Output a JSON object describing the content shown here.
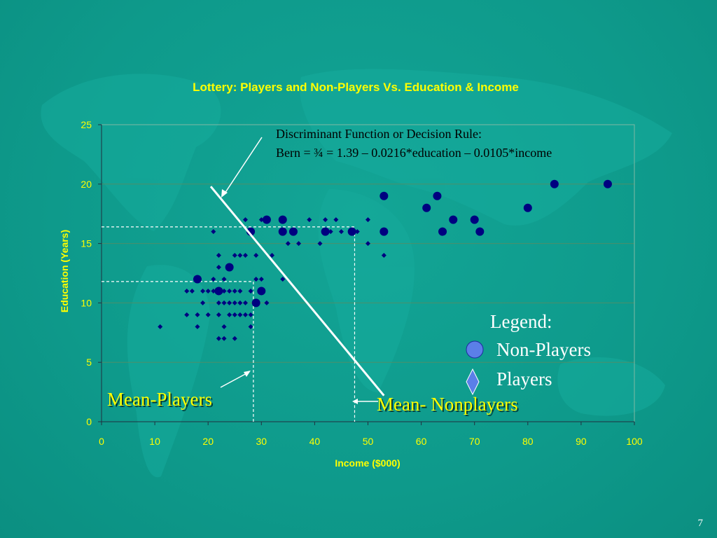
{
  "slide": {
    "number": "7"
  },
  "chart_data": {
    "type": "scatter",
    "title": "Lottery: Players and Non-Players Vs. Education & Income",
    "xlabel": "Income ($000)",
    "ylabel": "Education (Years)",
    "xlim": [
      0,
      100
    ],
    "ylim": [
      0,
      25
    ],
    "x_ticks": [
      "0",
      "10",
      "20",
      "30",
      "40",
      "50",
      "60",
      "70",
      "80",
      "90",
      "100"
    ],
    "y_ticks": [
      "0",
      "5",
      "10",
      "15",
      "20",
      "25"
    ],
    "grid": "horizontal",
    "colors": {
      "marker": "#000080",
      "legend_circle": "#5b7fe8",
      "line": "#ffffff",
      "title": "#ffff00"
    },
    "series": [
      {
        "name": "Non-Players",
        "marker": "circle",
        "points": [
          [
            18,
            12
          ],
          [
            22,
            11
          ],
          [
            24,
            13
          ],
          [
            28,
            16
          ],
          [
            29,
            10
          ],
          [
            30,
            11
          ],
          [
            31,
            17
          ],
          [
            34,
            17
          ],
          [
            34,
            16
          ],
          [
            36,
            16
          ],
          [
            42,
            16
          ],
          [
            47,
            16
          ],
          [
            53,
            19
          ],
          [
            53,
            16
          ],
          [
            61,
            18
          ],
          [
            63,
            19
          ],
          [
            64,
            16
          ],
          [
            66,
            17
          ],
          [
            70,
            17
          ],
          [
            71,
            16
          ],
          [
            80,
            18
          ],
          [
            85,
            20
          ],
          [
            95,
            20
          ]
        ]
      },
      {
        "name": "Players",
        "marker": "diamond",
        "points": [
          [
            11,
            8
          ],
          [
            16,
            11
          ],
          [
            17,
            11
          ],
          [
            16,
            9
          ],
          [
            18,
            9
          ],
          [
            18,
            8
          ],
          [
            19,
            11
          ],
          [
            19,
            10
          ],
          [
            20,
            11
          ],
          [
            20,
            9
          ],
          [
            21,
            16
          ],
          [
            21,
            12
          ],
          [
            21,
            11
          ],
          [
            22,
            14
          ],
          [
            22,
            13
          ],
          [
            22,
            10
          ],
          [
            22,
            9
          ],
          [
            22,
            7
          ],
          [
            23,
            12
          ],
          [
            23,
            11
          ],
          [
            23,
            10
          ],
          [
            23,
            8
          ],
          [
            23,
            7
          ],
          [
            24,
            11
          ],
          [
            24,
            10
          ],
          [
            24,
            9
          ],
          [
            25,
            14
          ],
          [
            25,
            11
          ],
          [
            25,
            10
          ],
          [
            25,
            9
          ],
          [
            25,
            7
          ],
          [
            26,
            14
          ],
          [
            26,
            11
          ],
          [
            26,
            10
          ],
          [
            26,
            9
          ],
          [
            27,
            17
          ],
          [
            27,
            14
          ],
          [
            27,
            10
          ],
          [
            27,
            9
          ],
          [
            28,
            11
          ],
          [
            28,
            9
          ],
          [
            28,
            8
          ],
          [
            29,
            14
          ],
          [
            29,
            12
          ],
          [
            30,
            17
          ],
          [
            30,
            12
          ],
          [
            30,
            11
          ],
          [
            31,
            10
          ],
          [
            32,
            14
          ],
          [
            34,
            12
          ],
          [
            35,
            15
          ],
          [
            37,
            15
          ],
          [
            39,
            17
          ],
          [
            41,
            15
          ],
          [
            42,
            17
          ],
          [
            43,
            16
          ],
          [
            44,
            17
          ],
          [
            45,
            16
          ],
          [
            48,
            16
          ],
          [
            50,
            17
          ],
          [
            50,
            15
          ],
          [
            53,
            14
          ]
        ]
      }
    ],
    "decision_line": {
      "from": [
        20.5,
        19.8
      ],
      "to": [
        53,
        2.2
      ]
    },
    "mean_players": {
      "x": 28.5,
      "y": 11.8
    },
    "mean_nonplayers": {
      "x": 47.5,
      "y": 16.4
    },
    "annotations": {
      "rule_line1": "Discriminant Function or Decision Rule:",
      "rule_line2": "Bern = ¾ = 1.39 – 0.0216*education – 0.0105*income",
      "mean_players": "Mean-Players",
      "mean_nonplayers": "Mean- Nonplayers"
    },
    "legend": {
      "title": "Legend:",
      "items": [
        {
          "label": "Non-Players",
          "marker": "circle"
        },
        {
          "label": "Players",
          "marker": "diamond"
        }
      ]
    }
  }
}
